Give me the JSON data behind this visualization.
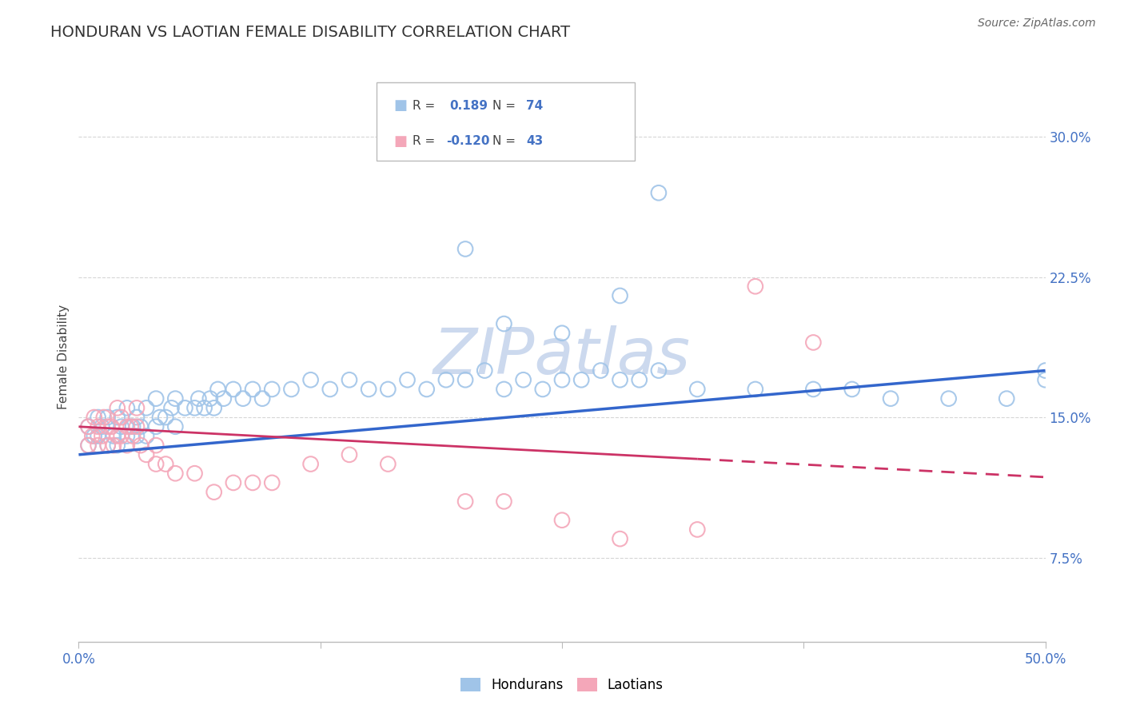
{
  "title": "HONDURAN VS LAOTIAN FEMALE DISABILITY CORRELATION CHART",
  "source": "Source: ZipAtlas.com",
  "ylabel": "Female Disability",
  "yticks": [
    "7.5%",
    "15.0%",
    "22.5%",
    "30.0%"
  ],
  "yvals": [
    0.075,
    0.15,
    0.225,
    0.3
  ],
  "xlim": [
    0.0,
    0.5
  ],
  "ylim": [
    0.03,
    0.335
  ],
  "r_honduran": 0.189,
  "n_honduran": 74,
  "r_laotian": -0.12,
  "n_laotian": 43,
  "honduran_color": "#a0c4e8",
  "laotian_color": "#f4a7b9",
  "trend_honduran_color": "#3366cc",
  "trend_laotian_color": "#cc3366",
  "watermark_color": "#d0dff0",
  "background_color": "#ffffff",
  "grid_color": "#cccccc",
  "honduran_x": [
    0.005,
    0.005,
    0.008,
    0.01,
    0.01,
    0.012,
    0.015,
    0.015,
    0.018,
    0.02,
    0.02,
    0.022,
    0.025,
    0.025,
    0.028,
    0.03,
    0.03,
    0.032,
    0.035,
    0.035,
    0.04,
    0.04,
    0.042,
    0.045,
    0.048,
    0.05,
    0.05,
    0.055,
    0.06,
    0.062,
    0.065,
    0.068,
    0.07,
    0.072,
    0.075,
    0.08,
    0.085,
    0.09,
    0.095,
    0.1,
    0.11,
    0.12,
    0.13,
    0.14,
    0.15,
    0.16,
    0.17,
    0.18,
    0.19,
    0.2,
    0.21,
    0.22,
    0.23,
    0.24,
    0.25,
    0.26,
    0.27,
    0.28,
    0.29,
    0.3,
    0.22,
    0.25,
    0.32,
    0.35,
    0.38,
    0.4,
    0.42,
    0.45,
    0.3,
    0.2,
    0.28,
    0.48,
    0.5,
    0.5
  ],
  "honduran_y": [
    0.135,
    0.145,
    0.14,
    0.14,
    0.15,
    0.145,
    0.135,
    0.15,
    0.14,
    0.135,
    0.15,
    0.145,
    0.14,
    0.155,
    0.145,
    0.14,
    0.15,
    0.145,
    0.14,
    0.155,
    0.145,
    0.16,
    0.15,
    0.15,
    0.155,
    0.145,
    0.16,
    0.155,
    0.155,
    0.16,
    0.155,
    0.16,
    0.155,
    0.165,
    0.16,
    0.165,
    0.16,
    0.165,
    0.16,
    0.165,
    0.165,
    0.17,
    0.165,
    0.17,
    0.165,
    0.165,
    0.17,
    0.165,
    0.17,
    0.17,
    0.175,
    0.165,
    0.17,
    0.165,
    0.17,
    0.17,
    0.175,
    0.17,
    0.17,
    0.175,
    0.2,
    0.195,
    0.165,
    0.165,
    0.165,
    0.165,
    0.16,
    0.16,
    0.27,
    0.24,
    0.215,
    0.16,
    0.175,
    0.17
  ],
  "laotian_x": [
    0.005,
    0.005,
    0.007,
    0.008,
    0.01,
    0.01,
    0.012,
    0.013,
    0.015,
    0.015,
    0.017,
    0.018,
    0.02,
    0.02,
    0.022,
    0.022,
    0.025,
    0.025,
    0.027,
    0.028,
    0.03,
    0.03,
    0.032,
    0.035,
    0.04,
    0.04,
    0.045,
    0.05,
    0.06,
    0.07,
    0.08,
    0.09,
    0.1,
    0.12,
    0.14,
    0.16,
    0.2,
    0.22,
    0.25,
    0.28,
    0.32,
    0.35,
    0.38
  ],
  "laotian_y": [
    0.135,
    0.145,
    0.14,
    0.15,
    0.135,
    0.145,
    0.14,
    0.15,
    0.135,
    0.145,
    0.145,
    0.135,
    0.14,
    0.155,
    0.14,
    0.15,
    0.135,
    0.145,
    0.145,
    0.14,
    0.145,
    0.155,
    0.135,
    0.13,
    0.135,
    0.125,
    0.125,
    0.12,
    0.12,
    0.11,
    0.115,
    0.115,
    0.115,
    0.125,
    0.13,
    0.125,
    0.105,
    0.105,
    0.095,
    0.085,
    0.09,
    0.22,
    0.19
  ],
  "trend_honduran_x0": 0.0,
  "trend_honduran_x1": 0.5,
  "trend_honduran_y0": 0.13,
  "trend_honduran_y1": 0.175,
  "trend_laotian_x0": 0.0,
  "trend_laotian_x1_solid": 0.32,
  "trend_laotian_x1_full": 0.5,
  "trend_laotian_y0": 0.145,
  "trend_laotian_y1": 0.118
}
